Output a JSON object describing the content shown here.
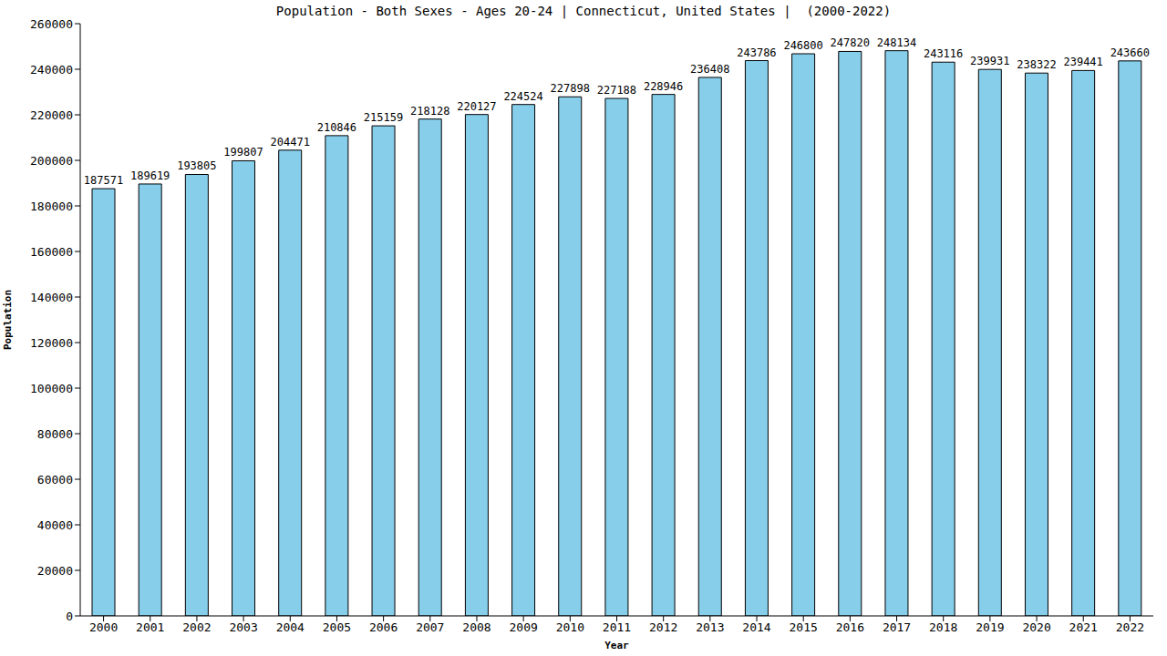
{
  "chart_data": {
    "type": "bar",
    "title": "Population - Both Sexes - Ages 20-24 | Connecticut, United States |  (2000-2022)",
    "x_label": "Year",
    "y_label": "Population",
    "categories": [
      "2000",
      "2001",
      "2002",
      "2003",
      "2004",
      "2005",
      "2006",
      "2007",
      "2008",
      "2009",
      "2010",
      "2011",
      "2012",
      "2013",
      "2014",
      "2015",
      "2016",
      "2017",
      "2018",
      "2019",
      "2020",
      "2021",
      "2022"
    ],
    "values": [
      187571,
      189619,
      193805,
      199807,
      204471,
      210846,
      215159,
      218128,
      220127,
      224524,
      227898,
      227188,
      228946,
      236408,
      243786,
      246800,
      247820,
      248134,
      243116,
      239931,
      238322,
      239441,
      243660
    ],
    "color": "#87ceeb",
    "ylim": [
      0,
      260000
    ],
    "yticks": [
      0,
      20000,
      40000,
      60000,
      80000,
      100000,
      120000,
      140000,
      160000,
      180000,
      200000,
      220000,
      240000,
      260000
    ],
    "grid": false,
    "data_labels": true
  }
}
